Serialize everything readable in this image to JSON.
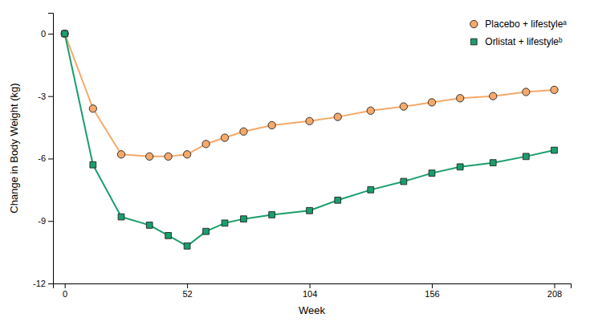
{
  "chart_data": {
    "type": "line",
    "xlabel": "Week",
    "ylabel": "Change in Body Weight (kg)",
    "x": [
      0,
      12,
      24,
      36,
      44,
      52,
      60,
      68,
      76,
      88,
      104,
      116,
      130,
      144,
      156,
      168,
      182,
      196,
      208
    ],
    "series": [
      {
        "name": "Placebo + lifestyleᵃ",
        "color": "#F5A96B",
        "marker": "circle",
        "values": [
          0,
          -3.6,
          -5.8,
          -5.9,
          -5.9,
          -5.8,
          -5.3,
          -5.0,
          -4.7,
          -4.4,
          -4.2,
          -4.0,
          -3.7,
          -3.5,
          -3.3,
          -3.1,
          -3.0,
          -2.8,
          -2.7
        ]
      },
      {
        "name": "Orlistat + lifestyleᵇ",
        "color": "#1A9E6C",
        "marker": "square",
        "values": [
          0,
          -6.3,
          -8.8,
          -9.2,
          -9.7,
          -10.2,
          -9.5,
          -9.1,
          -8.9,
          -8.7,
          -8.5,
          -8.0,
          -7.5,
          -7.1,
          -6.7,
          -6.4,
          -6.2,
          -5.9,
          -5.6
        ]
      }
    ],
    "xlim": [
      -5,
      215
    ],
    "ylim": [
      -12,
      1
    ],
    "xticks": [
      0,
      52,
      104,
      156,
      208
    ],
    "yticks": [
      0,
      -3,
      -6,
      -9,
      -12
    ],
    "legend": "upper right",
    "grid": false
  }
}
